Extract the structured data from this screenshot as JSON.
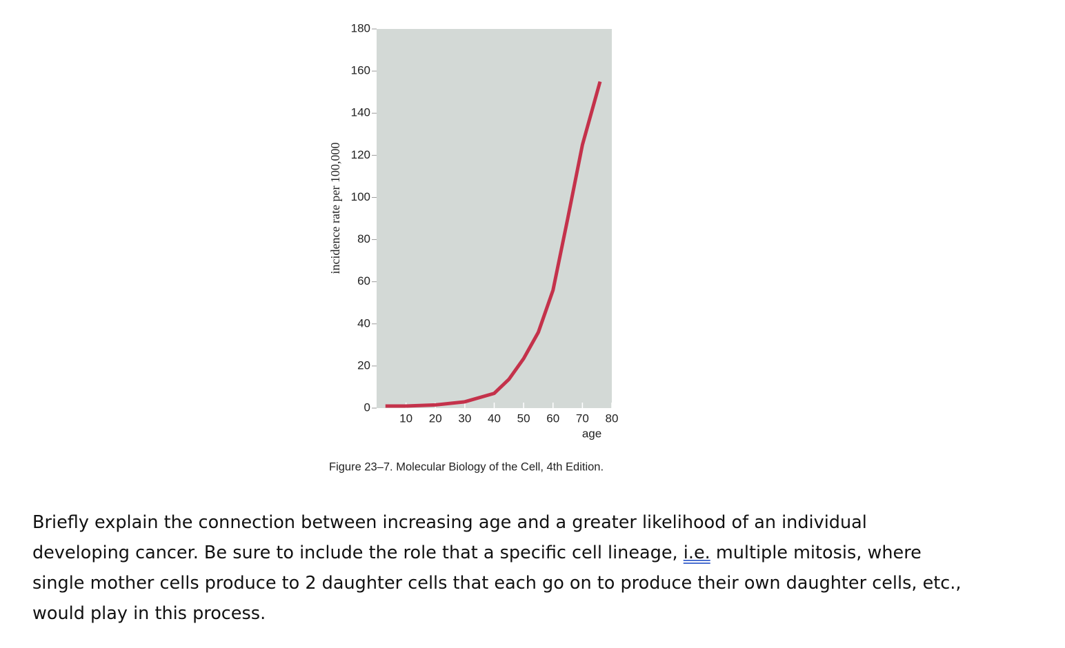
{
  "chart_data": {
    "type": "line",
    "xlabel": "age",
    "ylabel": "incidence rate per 100,000",
    "x": [
      3,
      10,
      20,
      30,
      40,
      45,
      50,
      55,
      60,
      65,
      70,
      76
    ],
    "series": [
      {
        "color": "#c4324b",
        "values": [
          1,
          1,
          1.5,
          3,
          7,
          13.7,
          23.5,
          36,
          56,
          90,
          125,
          155
        ]
      }
    ],
    "xlim": [
      0,
      80
    ],
    "xticks": [
      10,
      20,
      30,
      40,
      50,
      60,
      70,
      80
    ],
    "ylim": [
      0,
      180
    ],
    "yticks": [
      0,
      20,
      40,
      60,
      80,
      100,
      120,
      140,
      160,
      180
    ],
    "background": "#d3d9d6"
  },
  "caption": "Figure 23–7. Molecular Biology of the Cell, 4th Edition.",
  "question": [
    [
      "Briefly explain the connection between increasing age and a greater likelihood of an individual"
    ],
    [
      "developing cancer. Be sure to include the role that a specific cell lineage, ",
      "i.e.",
      " multiple mitosis, where"
    ],
    [
      "single mother cells produce to 2 daughter cells that each go on to produce their own daughter cells, etc.,"
    ],
    [
      "would play in this process."
    ]
  ]
}
